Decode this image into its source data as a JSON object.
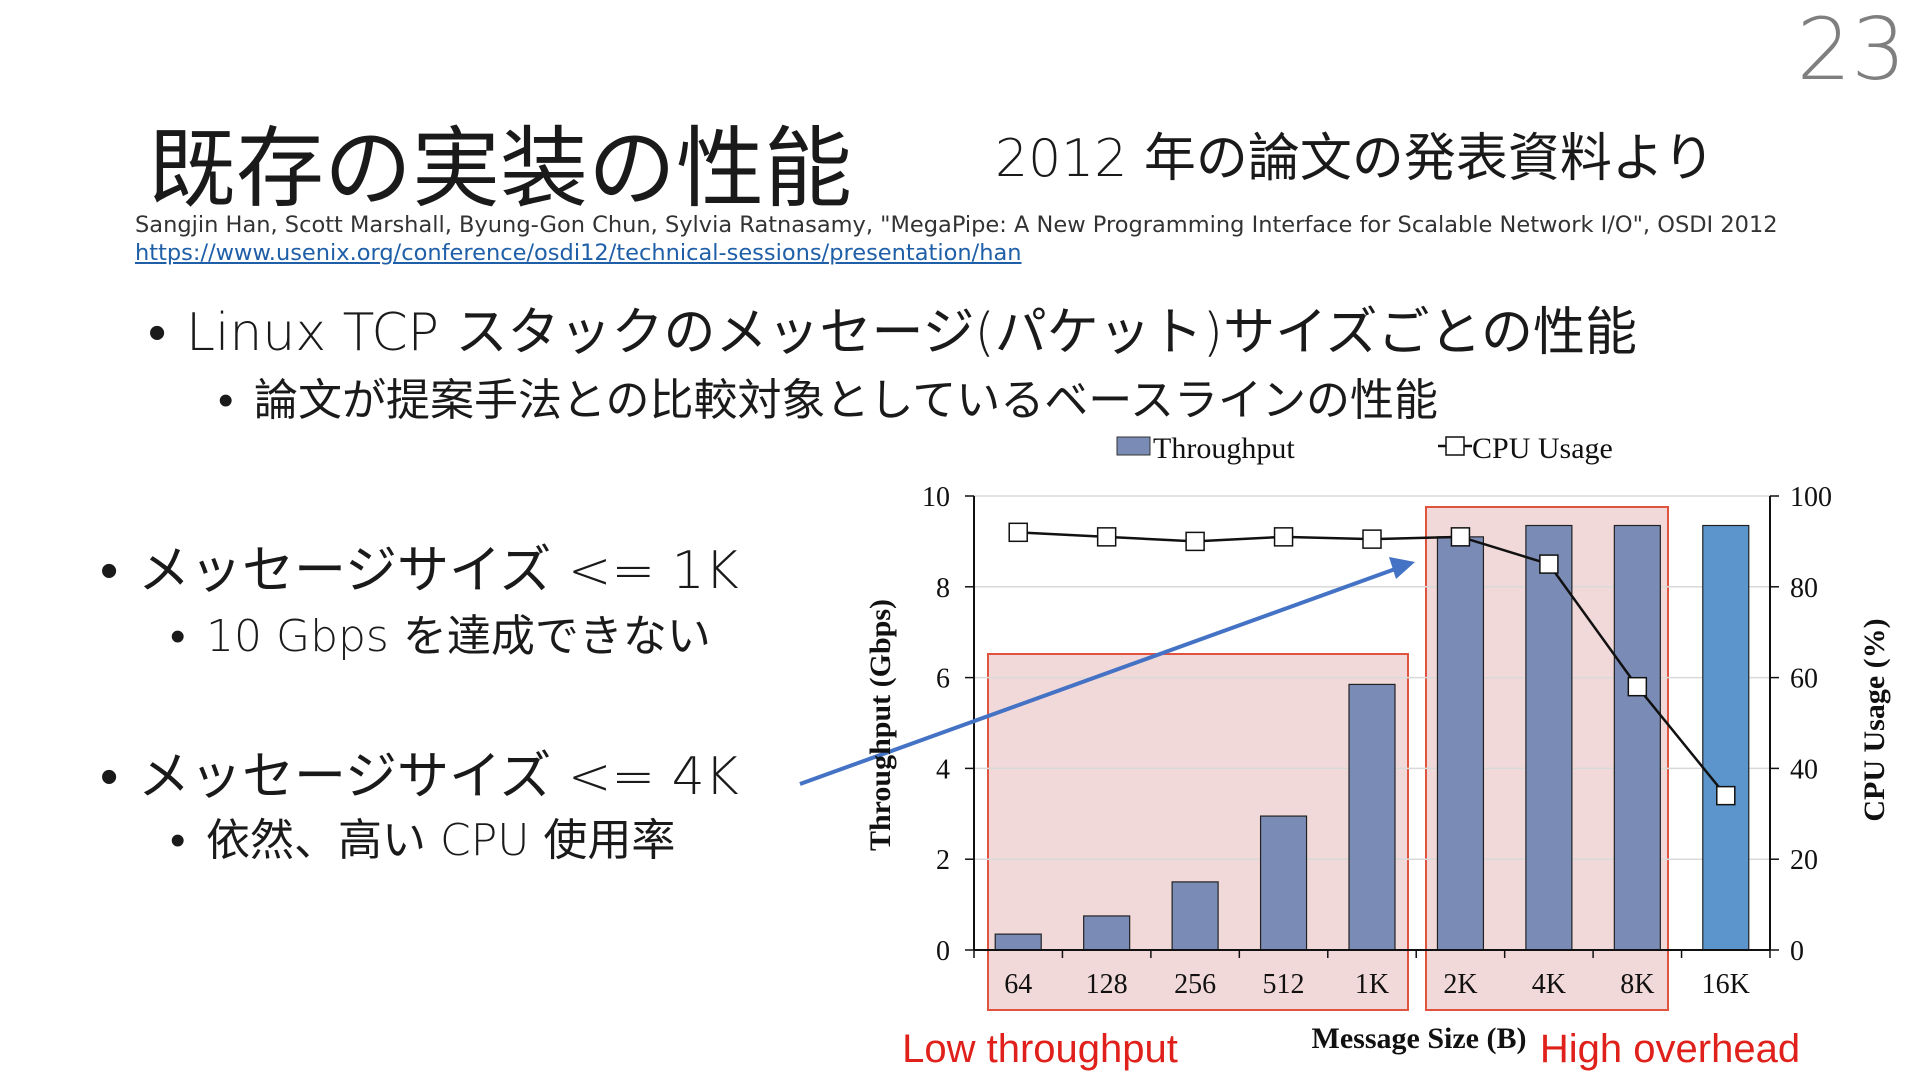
{
  "slide": {
    "page_number": "23",
    "title": "既存の実装の性能",
    "subtitle": "2012 年の論文の発表資料より",
    "citation": "Sangjin Han, Scott Marshall, Byung-Gon Chun, Sylvia Ratnasamy, \"MegaPipe: A New Programming Interface for Scalable Network I/O\", OSDI 2012",
    "citation_url": "https://www.usenix.org/conference/osdi12/technical-sessions/presentation/han"
  },
  "bullets": {
    "top": {
      "text": "Linux TCP スタックのメッセージ(パケット)サイズごとの性能",
      "sub": "論文が提案手法との比較対象としているベースラインの性能"
    },
    "item1": {
      "text": "メッセージサイズ <= 1K",
      "sub": "10 Gbps を達成できない"
    },
    "item2": {
      "text": "メッセージサイズ <= 4K",
      "sub": "依然、高い CPU 使用率"
    }
  },
  "chart_data": {
    "type": "bar",
    "categories": [
      "64",
      "128",
      "256",
      "512",
      "1K",
      "2K",
      "4K",
      "8K",
      "16K"
    ],
    "series": [
      {
        "name": "Throughput",
        "type": "bar",
        "axis": "left",
        "values": [
          0.35,
          0.75,
          1.5,
          2.95,
          5.85,
          9.1,
          9.35,
          9.35,
          9.35
        ]
      },
      {
        "name": "CPU Usage",
        "type": "line",
        "axis": "right",
        "values": [
          92,
          91,
          90,
          91,
          90.5,
          91,
          85,
          58,
          34
        ]
      }
    ],
    "xlabel": "Message Size (B)",
    "ylabel": "Throughput (Gbps)",
    "y2label": "CPU Usage (%)",
    "ylim": [
      0,
      10
    ],
    "y2lim": [
      0,
      100
    ],
    "yticks": [
      "0",
      "2",
      "4",
      "6",
      "8",
      "10"
    ],
    "y2ticks": [
      "0",
      "20",
      "40",
      "60",
      "80",
      "100"
    ],
    "grid": true,
    "legend": "top",
    "colors": {
      "bar": "#7a8cb6",
      "bar_highlight": "#5b95cb",
      "highlight_box": "#f2d9d9",
      "highlight_border": "#e0533f",
      "arrow": "#4472c4",
      "annotation": "#e0201b"
    },
    "annotations": {
      "low": "Low throughput",
      "high": "High overhead"
    }
  }
}
